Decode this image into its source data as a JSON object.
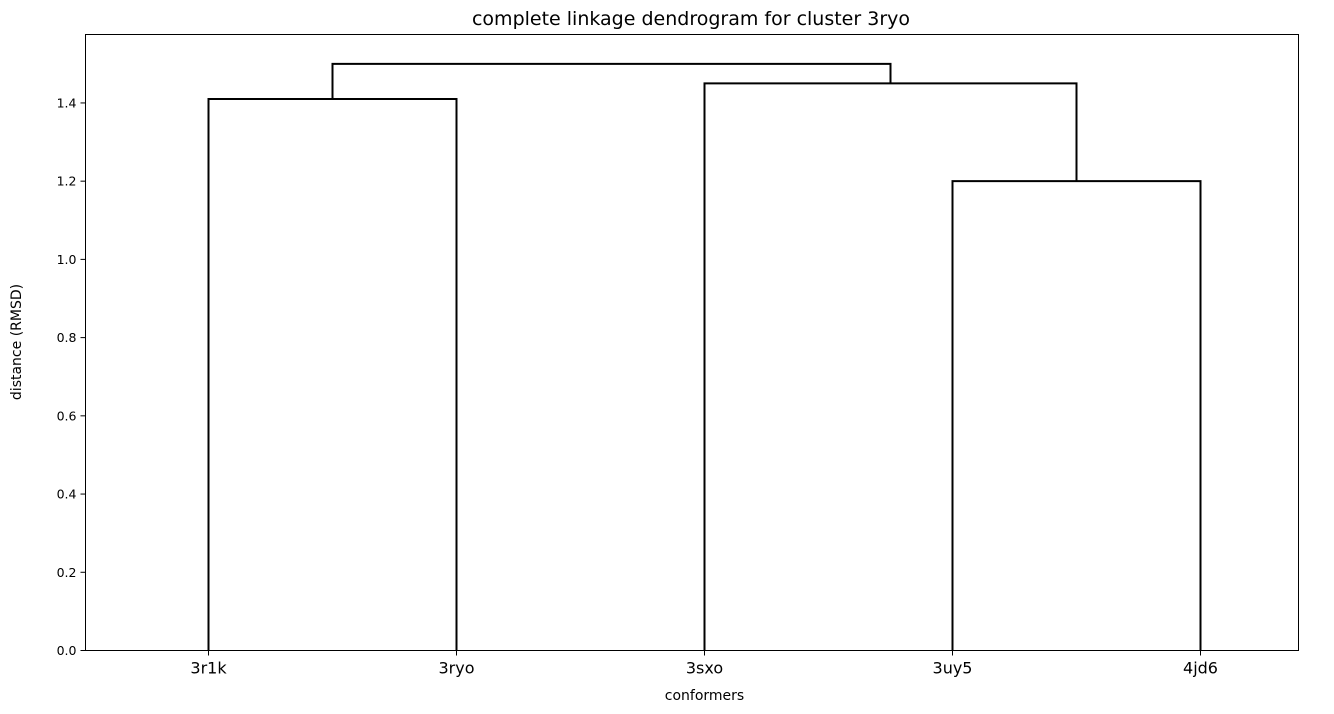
{
  "chart_data": {
    "type": "dendrogram",
    "title": "complete linkage dendrogram for cluster 3ryo",
    "xlabel": "conformers",
    "ylabel": "distance (RMSD)",
    "ylim": [
      0,
      1.575
    ],
    "yticks": [
      "0.0",
      "0.2",
      "0.4",
      "0.6",
      "0.8",
      "1.0",
      "1.2",
      "1.4"
    ],
    "leaves": [
      "3r1k",
      "3ryo",
      "3sxo",
      "3uy5",
      "4jd6"
    ],
    "merges": [
      {
        "left": "3r1k",
        "right": "3ryo",
        "height": 1.41
      },
      {
        "left": "3uy5",
        "right": "4jd6",
        "height": 1.2
      },
      {
        "left": "3sxo",
        "right": "(3uy5, 4jd6)",
        "height": 1.45
      },
      {
        "left": "(3r1k, 3ryo)",
        "right": "(3sxo, (3uy5, 4jd6))",
        "height": 1.5
      }
    ],
    "line_color": "#000000",
    "grid": false,
    "legend": "none"
  }
}
